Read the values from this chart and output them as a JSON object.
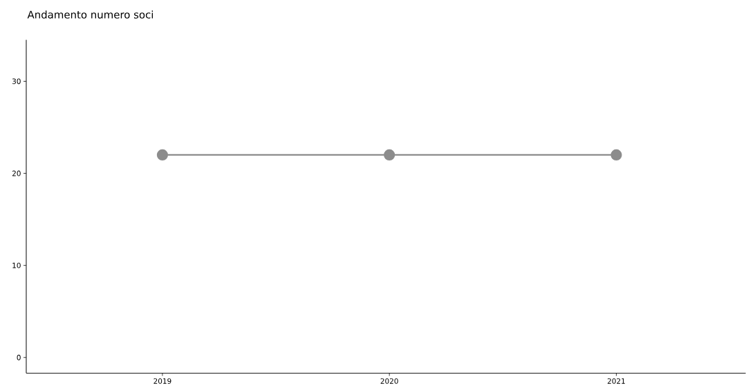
{
  "chart_data": {
    "type": "line",
    "title": "Andamento numero soci",
    "x": [
      2019,
      2020,
      2021
    ],
    "series": [
      {
        "color": "#8c8c8c",
        "values": [
          22,
          22,
          22
        ]
      }
    ],
    "xlim": [
      2018.4,
      2021.57
    ],
    "ylim": [
      -1.7,
      34.5
    ],
    "xticks": [
      2019,
      2020,
      2021
    ],
    "yticks": [
      0,
      10,
      20,
      30
    ],
    "marker": "circle",
    "line_style": "solid"
  }
}
